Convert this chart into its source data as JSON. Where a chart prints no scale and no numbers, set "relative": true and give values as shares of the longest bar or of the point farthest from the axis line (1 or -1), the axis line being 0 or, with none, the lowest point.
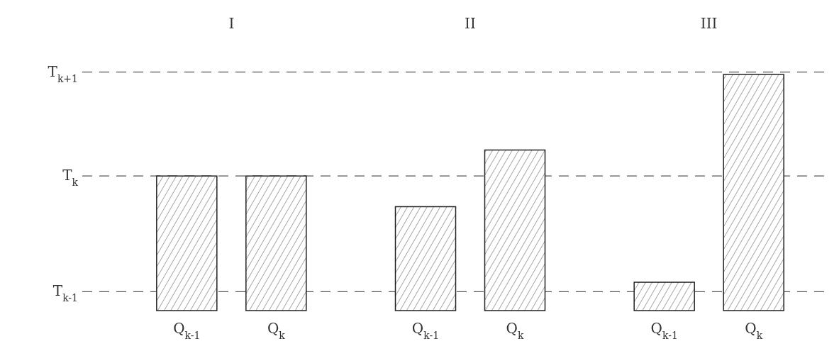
{
  "chart_data": {
    "type": "bar",
    "relative": true,
    "categories": [
      "Q$_{k-1}$",
      "Q$_{k}$",
      "Q$_{k-1}$",
      "Q$_{k}$",
      "Q$_{k-1}$",
      "Q$_{k}$"
    ],
    "values": [
      0.57,
      0.57,
      0.44,
      0.68,
      0.12,
      1
    ],
    "color": "#222222",
    "annotations": [
      "I",
      "II",
      "III"
    ],
    "ref_lines": [
      {
        "axis": "y",
        "value": 0.08,
        "label": "T$_{k-1}$",
        "line_style": "dashed",
        "color": "#555555"
      },
      {
        "axis": "y",
        "value": 0.57,
        "label": "T$_{k}$",
        "line_style": "dashed",
        "color": "#555555"
      },
      {
        "axis": "y",
        "value": 1.01,
        "label": "T$_{k+1}$",
        "line_style": "dashed",
        "color": "#555555"
      }
    ]
  }
}
